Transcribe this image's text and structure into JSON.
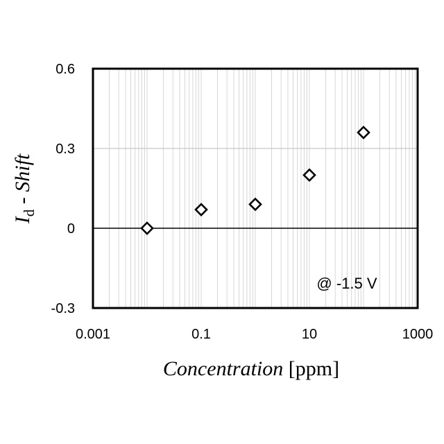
{
  "chart_data": {
    "type": "scatter",
    "x_scale": "log",
    "xlim": [
      0.001,
      1000
    ],
    "ylim": [
      -0.3,
      0.6
    ],
    "x_ticks": [
      0.001,
      0.1,
      10,
      1000
    ],
    "x_tick_labels": [
      "0.001",
      "0.1",
      "10",
      "1000"
    ],
    "y_ticks": [
      -0.3,
      0,
      0.3,
      0.6
    ],
    "y_tick_labels": [
      "-0.3",
      "0",
      "0.3",
      "0.6"
    ],
    "xlabel": {
      "italic": "Concentration",
      "plain": "[ppm]"
    },
    "ylabel": {
      "symbol": "I",
      "subscript": "d",
      "rest": " - Shift"
    },
    "annotation": "@ -1.5 V",
    "grid": "major-y and minor-log-x",
    "legend": "none",
    "marker": "open-diamond",
    "series": [
      {
        "x": [
          0.01,
          0.1,
          1,
          10,
          100
        ],
        "y": [
          0.0,
          0.07,
          0.09,
          0.2,
          0.36
        ]
      }
    ]
  }
}
